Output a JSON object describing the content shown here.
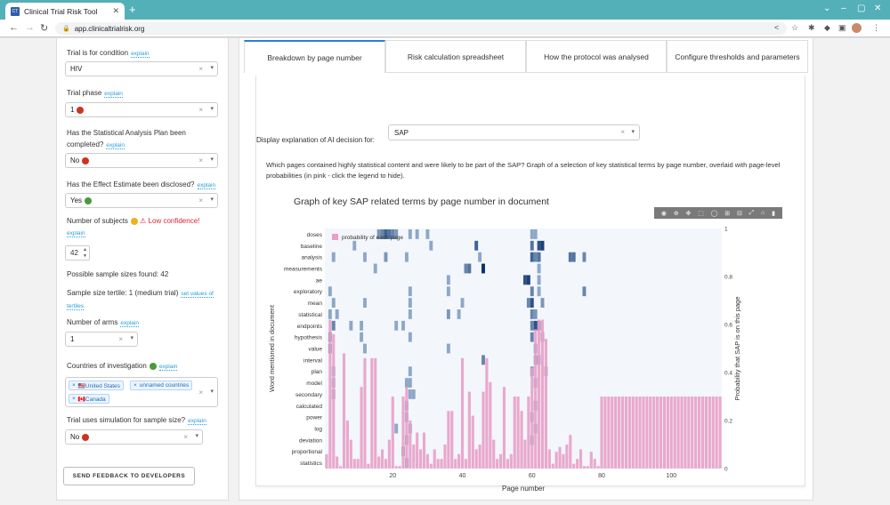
{
  "browser": {
    "tab_title": "Clinical Trial Risk Tool",
    "tab_favicon": "CT",
    "url": "app.clinicaltrialrisk.org"
  },
  "sidebar": {
    "explain_label": "explain",
    "condition_label": "Trial is for condition",
    "condition_value": "HIV",
    "phase_label": "Trial phase",
    "phase_value": "1",
    "sap_label_1": "Has the Statistical Analysis Plan been",
    "sap_label_2": "completed?",
    "sap_value": "No",
    "effect_label": "Has the Effect Estimate been disclosed?",
    "effect_value": "Yes",
    "subjects_label": "Number of subjects",
    "subjects_warning": "⚠ Low confidence!",
    "subjects_value": "42",
    "possible_sizes": "Possible sample sizes found: 42",
    "tertile_text": "Sample size tertile: 1 (medium trial)",
    "tertile_link_1": "set values of",
    "tertile_link_2": "tertiles",
    "arms_label": "Number of arms",
    "arms_value": "1",
    "countries_label": "Countries of investigation",
    "countries": [
      "🇺🇸United States",
      "unnamed countries",
      "🇨🇦Canada"
    ],
    "simulation_label": "Trial uses simulation for sample size?",
    "simulation_value": "No",
    "feedback_button": "SEND FEEDBACK TO DEVELOPERS"
  },
  "main": {
    "tabs": [
      "Breakdown by page number",
      "Risk calculation spreadsheet",
      "How the protocol was analysed",
      "Configure thresholds and parameters"
    ],
    "display_label": "Display explanation of AI decision for:",
    "decision_value": "SAP",
    "description": "Which pages contained highly statistical content and were likely to be part of the SAP? Graph of a selection of key statistical terms by page number, overlaid with page-level probabilities (in pink - click the legend to hide)."
  },
  "colors": {
    "accent": "#2a7fd6",
    "link": "#2a9fd6",
    "probability_bar": "#e8a0c8",
    "heat_light": "#c6dbef",
    "heat_dark": "#08306b"
  },
  "chart_data": {
    "type": "heatmap",
    "title": "Graph of key SAP related terms by page number in document",
    "xlabel": "Page number",
    "ylabel": "Word mentioned in document",
    "y2label": "Probability that SAP is on this page",
    "xlim": [
      1,
      114
    ],
    "y2lim": [
      0,
      1
    ],
    "x_ticks": [
      20,
      40,
      60,
      80,
      100
    ],
    "y2_ticks": [
      0,
      0.2,
      0.4,
      0.6,
      0.8,
      1
    ],
    "legend": "probability of each page",
    "legend_position": "top-left",
    "terms": [
      "doses",
      "baseline",
      "analysis",
      "measurements",
      "ae",
      "exploratory",
      "mean",
      "statistical",
      "endpoints",
      "hypothesis",
      "value",
      "interval",
      "plan",
      "model",
      "secondary",
      "calculated",
      "power",
      "log",
      "deviation",
      "proportional",
      "statistics"
    ],
    "heat_cells": [
      [
        0,
        16,
        0.4
      ],
      [
        0,
        17,
        0.5
      ],
      [
        0,
        18,
        0.7
      ],
      [
        0,
        19,
        0.6
      ],
      [
        0,
        20,
        0.5
      ],
      [
        0,
        21,
        0.4
      ],
      [
        0,
        25,
        0.3
      ],
      [
        0,
        27,
        0.3
      ],
      [
        0,
        30,
        0.3
      ],
      [
        0,
        60,
        0.3
      ],
      [
        0,
        61,
        0.3
      ],
      [
        1,
        9,
        0.3
      ],
      [
        1,
        31,
        0.3
      ],
      [
        1,
        44,
        0.7
      ],
      [
        1,
        60,
        0.6
      ],
      [
        1,
        62,
        0.8
      ],
      [
        1,
        63,
        0.9
      ],
      [
        2,
        3,
        0.3
      ],
      [
        2,
        12,
        0.3
      ],
      [
        2,
        18,
        0.4
      ],
      [
        2,
        24,
        0.3
      ],
      [
        2,
        45,
        0.3
      ],
      [
        2,
        60,
        0.7
      ],
      [
        2,
        61,
        0.5
      ],
      [
        2,
        62,
        0.6
      ],
      [
        2,
        71,
        0.6
      ],
      [
        2,
        72,
        0.6
      ],
      [
        2,
        75,
        0.5
      ],
      [
        3,
        15,
        0.3
      ],
      [
        3,
        41,
        0.5
      ],
      [
        3,
        42,
        0.6
      ],
      [
        3,
        46,
        1.0
      ],
      [
        3,
        62,
        0.3
      ],
      [
        4,
        36,
        0.3
      ],
      [
        4,
        58,
        0.8
      ],
      [
        4,
        59,
        0.9
      ],
      [
        4,
        62,
        0.3
      ],
      [
        5,
        2,
        0.3
      ],
      [
        5,
        25,
        0.3
      ],
      [
        5,
        36,
        0.3
      ],
      [
        5,
        60,
        0.5
      ],
      [
        5,
        62,
        0.3
      ],
      [
        5,
        75,
        0.5
      ],
      [
        6,
        3,
        0.3
      ],
      [
        6,
        12,
        0.3
      ],
      [
        6,
        25,
        0.3
      ],
      [
        6,
        40,
        0.3
      ],
      [
        6,
        59,
        0.5
      ],
      [
        6,
        60,
        0.8
      ],
      [
        6,
        63,
        0.4
      ],
      [
        7,
        2,
        0.3
      ],
      [
        7,
        4,
        0.3
      ],
      [
        7,
        25,
        0.3
      ],
      [
        7,
        36,
        0.4
      ],
      [
        7,
        39,
        0.3
      ],
      [
        7,
        60,
        0.5
      ],
      [
        7,
        61,
        0.4
      ],
      [
        8,
        3,
        0.5
      ],
      [
        8,
        8,
        0.3
      ],
      [
        8,
        11,
        0.3
      ],
      [
        8,
        21,
        0.3
      ],
      [
        8,
        23,
        0.3
      ],
      [
        8,
        60,
        0.5
      ],
      [
        8,
        61,
        0.8
      ],
      [
        8,
        62,
        0.6
      ],
      [
        9,
        2,
        0.5
      ],
      [
        9,
        11,
        0.3
      ],
      [
        9,
        25,
        0.3
      ],
      [
        9,
        60,
        0.5
      ],
      [
        9,
        63,
        0.3
      ],
      [
        10,
        2,
        0.5
      ],
      [
        10,
        12,
        0.3
      ],
      [
        10,
        36,
        0.3
      ],
      [
        10,
        61,
        0.4
      ],
      [
        11,
        46,
        0.5
      ],
      [
        11,
        61,
        0.4
      ],
      [
        11,
        62,
        0.3
      ],
      [
        12,
        3,
        0.3
      ],
      [
        12,
        25,
        0.3
      ],
      [
        12,
        60,
        0.4
      ],
      [
        12,
        64,
        0.3
      ],
      [
        13,
        3,
        0.3
      ],
      [
        13,
        24,
        0.3
      ],
      [
        13,
        25,
        0.3
      ],
      [
        13,
        61,
        0.3
      ],
      [
        14,
        3,
        0.3
      ],
      [
        14,
        25,
        0.3
      ],
      [
        14,
        26,
        0.3
      ],
      [
        15,
        24,
        0.3
      ],
      [
        15,
        61,
        0.3
      ],
      [
        16,
        24,
        0.3
      ],
      [
        16,
        60,
        0.3
      ],
      [
        17,
        21,
        0.3
      ],
      [
        17,
        25,
        0.3
      ],
      [
        17,
        61,
        0.3
      ],
      [
        18,
        24,
        0.3
      ],
      [
        18,
        60,
        0.3
      ],
      [
        19,
        23,
        0.3
      ],
      [
        20,
        24,
        0.3
      ]
    ],
    "probabilities": [
      0.06,
      0.62,
      0.56,
      0.05,
      0.01,
      0.48,
      0.2,
      0.12,
      0.04,
      0.04,
      0.34,
      0.46,
      0.02,
      0.46,
      0.46,
      0.05,
      0.08,
      0.04,
      0.12,
      0.3,
      0.01,
      0.01,
      0.3,
      0.34,
      0.2,
      0.1,
      0.15,
      0.08,
      0.15,
      0.06,
      0.02,
      0.08,
      0.04,
      0.04,
      0.1,
      0.24,
      0.24,
      0.04,
      0.06,
      0.46,
      0.04,
      0.32,
      0.22,
      0.08,
      0.1,
      0.32,
      0.46,
      0.36,
      0.12,
      0.04,
      0.06,
      0.34,
      0.04,
      0.06,
      0.3,
      0.3,
      0.24,
      0.12,
      0.3,
      0.42,
      0.58,
      0.62,
      0.62,
      0.54,
      0.08,
      0.02,
      0.07,
      0.09,
      0.06,
      0.1,
      0.14,
      0.02,
      0.04,
      0.08,
      0.01,
      0.01,
      0.07,
      0.04,
      0.01,
      0.3,
      0.3,
      0.3,
      0.3,
      0.3,
      0.3,
      0.3,
      0.3,
      0.3,
      0.3,
      0.3,
      0.3,
      0.3,
      0.3,
      0.3,
      0.3,
      0.3,
      0.3,
      0.3,
      0.3,
      0.3,
      0.3,
      0.3,
      0.3,
      0.3,
      0.3,
      0.3,
      0.3,
      0.3,
      0.3,
      0.3,
      0.3,
      0.3,
      0.3,
      0.3
    ]
  }
}
